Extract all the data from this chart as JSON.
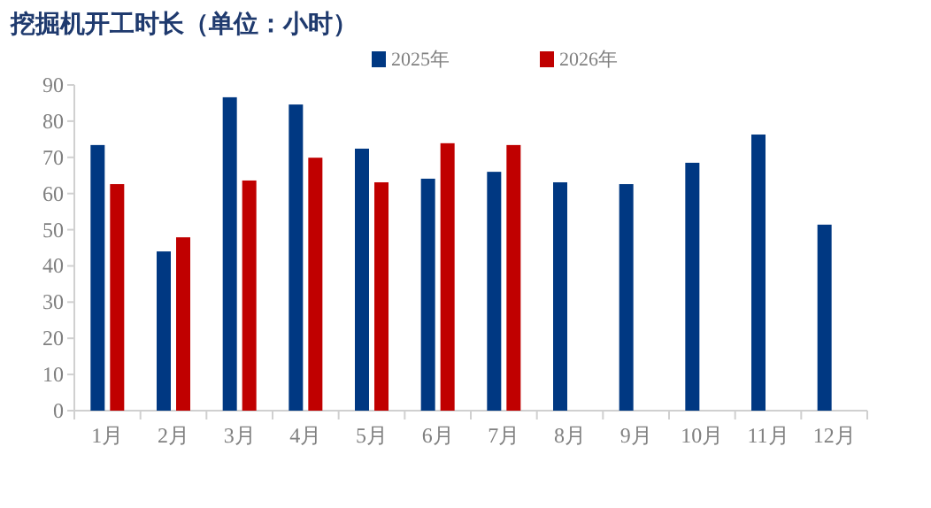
{
  "chart_data": {
    "type": "bar",
    "title": "挖掘机开工时长（单位：小时）",
    "categories": [
      "1月",
      "2月",
      "3月",
      "4月",
      "5月",
      "6月",
      "7月",
      "8月",
      "9月",
      "10月",
      "11月",
      "12月"
    ],
    "series": [
      {
        "name": "2025年",
        "color": "#003882",
        "values": [
          73.4,
          44.0,
          86.6,
          84.6,
          72.4,
          64.1,
          66.0,
          63.1,
          62.6,
          68.5,
          76.3,
          51.4
        ]
      },
      {
        "name": "2026年",
        "color": "#c00000",
        "values": [
          62.6,
          47.9,
          63.6,
          69.9,
          63.1,
          73.9,
          73.4,
          null,
          null,
          null,
          null,
          null
        ]
      }
    ],
    "ylim": [
      0,
      90
    ],
    "yticks": [
      0,
      10,
      20,
      30,
      40,
      50,
      60,
      70,
      80,
      90
    ],
    "legend": "top",
    "grid": false
  }
}
